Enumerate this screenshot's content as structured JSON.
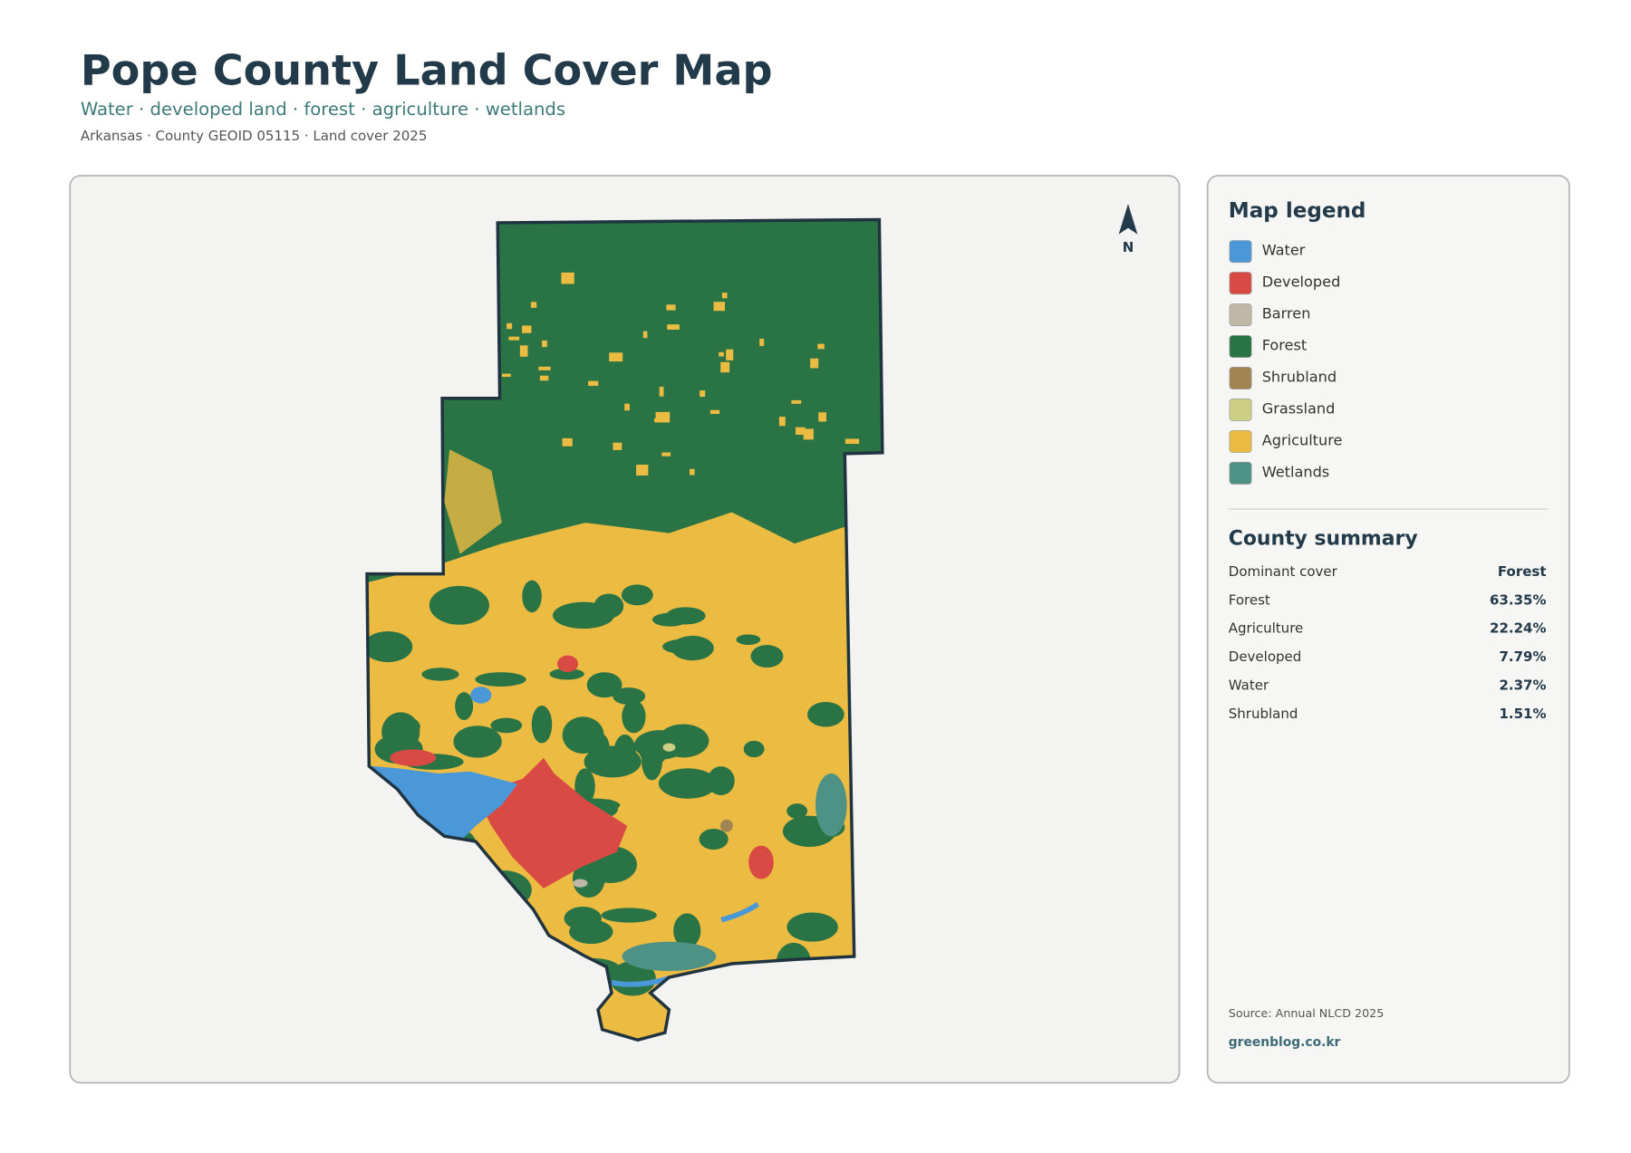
{
  "header": {
    "title": "Pope County Land Cover Map",
    "subtitle": "Water · developed land · forest · agriculture · wetlands",
    "meta": "Arkansas · County GEOID 05115 · Land cover 2025"
  },
  "north": "N",
  "legend": {
    "title": "Map legend",
    "items": [
      {
        "label": "Water",
        "color": "#4a98d8"
      },
      {
        "label": "Developed",
        "color": "#d94a45"
      },
      {
        "label": "Barren",
        "color": "#bfb8a6"
      },
      {
        "label": "Forest",
        "color": "#2a7345"
      },
      {
        "label": "Shrubland",
        "color": "#a08552"
      },
      {
        "label": "Grassland",
        "color": "#cdd084"
      },
      {
        "label": "Agriculture",
        "color": "#ecbb42"
      },
      {
        "label": "Wetlands",
        "color": "#4e9185"
      }
    ]
  },
  "summary": {
    "title": "County summary",
    "rows": [
      [
        "Dominant cover",
        "Forest"
      ],
      [
        "Forest",
        "63.35%"
      ],
      [
        "Agriculture",
        "22.24%"
      ],
      [
        "Developed",
        "7.79%"
      ],
      [
        "Water",
        "2.37%"
      ],
      [
        "Shrubland",
        "1.51%"
      ]
    ]
  },
  "footer": {
    "source": "Source: Annual NLCD 2025",
    "site": "greenblog.co.kr"
  }
}
